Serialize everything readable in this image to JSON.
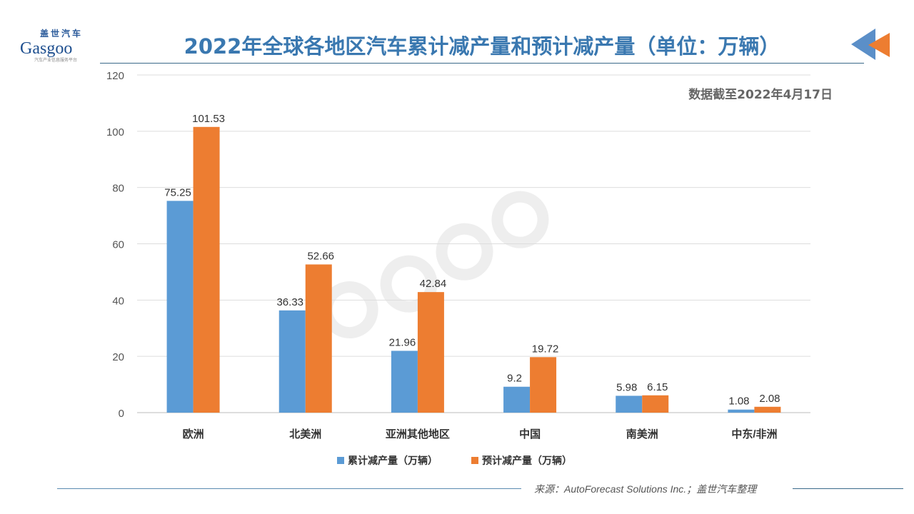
{
  "logo": {
    "cn": "盖世汽车",
    "en": "Gasgoo",
    "sub": "汽车产业信息服务平台"
  },
  "title": "2022年全球各地区汽车累计减产量和预计减产量（单位：万辆）",
  "note": "数据截至2022年4月17日",
  "source": "来源：AutoForecast Solutions Inc.；盖世汽车整理",
  "watermark": "盖世汽车 Gasgoo",
  "chart_data": {
    "type": "bar",
    "categories": [
      "欧洲",
      "北美洲",
      "亚洲其他地区",
      "中国",
      "南美洲",
      "中东/非洲"
    ],
    "series": [
      {
        "name": "累计减产量（万辆）",
        "color": "#5b9bd5",
        "values": [
          75.25,
          36.33,
          21.96,
          9.2,
          5.98,
          1.08
        ]
      },
      {
        "name": "预计减产量（万辆）",
        "color": "#ed7d31",
        "values": [
          101.53,
          52.66,
          42.84,
          19.72,
          6.15,
          2.08
        ]
      }
    ],
    "yticks": [
      0,
      20,
      40,
      60,
      80,
      100,
      120
    ],
    "ylim": [
      0,
      120
    ],
    "grid": true,
    "legend": "bottom"
  }
}
